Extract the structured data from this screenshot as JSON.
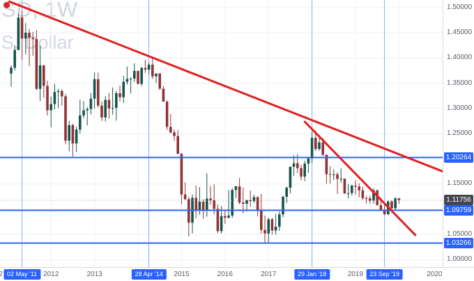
{
  "watermark": {
    "line1": "SD, 1W",
    "line2": "S. Dollar"
  },
  "colors": {
    "background": "#ffffff",
    "grid": "#eef1f6",
    "candle_up": "#17554c",
    "candle_down": "#8f3336",
    "level_line_blue": "#2e66f2",
    "vertical_line_blue": "#86aef5",
    "badge_blue": "#2962ff",
    "badge_last": "#434651",
    "trendline_red": "#e02020",
    "axis_text": "#575c66"
  },
  "price_axis": {
    "tick_labels": [
      "1.50000",
      "1.45000",
      "1.40000",
      "1.35000",
      "1.30000",
      "1.25000",
      "1.15000",
      "1.05000",
      "1.00000"
    ],
    "badges": [
      {
        "text": "1.20264",
        "value": 1.20264,
        "style": "level"
      },
      {
        "text": "1.11756",
        "value": 1.11756,
        "style": "last"
      },
      {
        "text": "1.09759",
        "value": 1.09759,
        "style": "level"
      },
      {
        "text": "1.03266",
        "value": 1.03266,
        "style": "level"
      }
    ]
  },
  "time_axis": {
    "year_labels": [
      {
        "text": "2",
        "index": -2.9
      },
      {
        "text": "2012",
        "index": 11
      },
      {
        "text": "2013",
        "index": 23
      },
      {
        "text": "2015",
        "index": 47
      },
      {
        "text": "2016",
        "index": 59
      },
      {
        "text": "2017",
        "index": 71
      },
      {
        "text": "2019",
        "index": 95
      },
      {
        "text": "2020",
        "index": 116.8
      }
    ],
    "year_gridline_indices": [
      11,
      23,
      35,
      47,
      59,
      71,
      83,
      95,
      107
    ],
    "date_badges": [
      {
        "text": "02 May '11",
        "index": 3
      },
      {
        "text": "28 Apr '14",
        "index": 38
      },
      {
        "text": "29 Jan '18",
        "index": 83
      },
      {
        "text": "23 Sep '19",
        "index": 103
      }
    ]
  },
  "chart_data": {
    "type": "candlestick",
    "x_start": "2011-02",
    "x_unit": "month",
    "ylim": [
      0.985,
      1.515
    ],
    "y_tick_step": 0.05,
    "grid": true,
    "last_price": 1.11756,
    "horizontal_levels": [
      1.20264,
      1.09759,
      1.03266
    ],
    "trendlines": [
      {
        "name": "upper",
        "from_index": -0.5,
        "from_price": 1.512,
        "to_index": 119,
        "to_price": 1.175
      },
      {
        "name": "lower",
        "from_index": 81,
        "from_price": 1.2735,
        "to_index": 111.5,
        "to_price": 1.0486
      }
    ],
    "anchor_dot": {
      "index": -1.2,
      "price": 1.505
    },
    "ohlc": [
      [
        1.369,
        1.3855,
        1.3428,
        1.3806
      ],
      [
        1.3806,
        1.4249,
        1.375,
        1.4158
      ],
      [
        1.4158,
        1.4882,
        1.4155,
        1.4802
      ],
      [
        1.4802,
        1.494,
        1.3968,
        1.4385
      ],
      [
        1.4385,
        1.4696,
        1.4073,
        1.4502
      ],
      [
        1.4502,
        1.4578,
        1.3837,
        1.4398
      ],
      [
        1.4398,
        1.4518,
        1.4046,
        1.4374
      ],
      [
        1.4374,
        1.455,
        1.3363,
        1.3387
      ],
      [
        1.3387,
        1.4247,
        1.3146,
        1.3852
      ],
      [
        1.3852,
        1.386,
        1.3212,
        1.3446
      ],
      [
        1.3446,
        1.3548,
        1.2858,
        1.2961
      ],
      [
        1.2961,
        1.3234,
        1.2624,
        1.3084
      ],
      [
        1.3084,
        1.3487,
        1.2974,
        1.3325
      ],
      [
        1.3325,
        1.3386,
        1.3004,
        1.3343
      ],
      [
        1.3343,
        1.338,
        1.3056,
        1.3239
      ],
      [
        1.3239,
        1.3284,
        1.2288,
        1.2358
      ],
      [
        1.2358,
        1.2748,
        1.2151,
        1.2667
      ],
      [
        1.2667,
        1.2693,
        1.2043,
        1.2304
      ],
      [
        1.2304,
        1.2638,
        1.2133,
        1.2579
      ],
      [
        1.2579,
        1.3172,
        1.2501,
        1.286
      ],
      [
        1.286,
        1.314,
        1.2803,
        1.296
      ],
      [
        1.296,
        1.3028,
        1.2661,
        1.2986
      ],
      [
        1.2986,
        1.3308,
        1.288,
        1.3193
      ],
      [
        1.3193,
        1.3711,
        1.2998,
        1.3579
      ],
      [
        1.3579,
        1.371,
        1.3018,
        1.3054
      ],
      [
        1.3054,
        1.3134,
        1.275,
        1.282
      ],
      [
        1.282,
        1.3243,
        1.274,
        1.3167
      ],
      [
        1.3167,
        1.3306,
        1.2796,
        1.2999
      ],
      [
        1.2999,
        1.3415,
        1.2877,
        1.301
      ],
      [
        1.301,
        1.3345,
        1.2755,
        1.33
      ],
      [
        1.33,
        1.3452,
        1.3138,
        1.3222
      ],
      [
        1.3222,
        1.3645,
        1.3105,
        1.3527
      ],
      [
        1.3527,
        1.3832,
        1.3472,
        1.3583
      ],
      [
        1.3583,
        1.3616,
        1.3295,
        1.3591
      ],
      [
        1.3591,
        1.3893,
        1.3525,
        1.3743
      ],
      [
        1.3743,
        1.3744,
        1.3477,
        1.3486
      ],
      [
        1.3486,
        1.3824,
        1.3445,
        1.3802
      ],
      [
        1.3802,
        1.3967,
        1.3704,
        1.3769
      ],
      [
        1.3769,
        1.3906,
        1.3673,
        1.3866
      ],
      [
        1.3866,
        1.3993,
        1.3586,
        1.3635
      ],
      [
        1.3635,
        1.3677,
        1.3503,
        1.3692
      ],
      [
        1.3692,
        1.3701,
        1.3366,
        1.339
      ],
      [
        1.339,
        1.3445,
        1.3133,
        1.3133
      ],
      [
        1.3133,
        1.316,
        1.2571,
        1.2632
      ],
      [
        1.2632,
        1.2886,
        1.2501,
        1.2524
      ],
      [
        1.2524,
        1.2578,
        1.2357,
        1.2452
      ],
      [
        1.2452,
        1.257,
        1.2098,
        1.2098
      ],
      [
        1.2098,
        1.2109,
        1.1098,
        1.1291
      ],
      [
        1.1291,
        1.1534,
        1.1184,
        1.1197
      ],
      [
        1.1197,
        1.1245,
        1.0462,
        1.0731
      ],
      [
        1.0731,
        1.129,
        1.052,
        1.1224
      ],
      [
        1.1224,
        1.1467,
        1.0819,
        1.0987
      ],
      [
        1.0987,
        1.1436,
        1.0887,
        1.1147
      ],
      [
        1.1147,
        1.1196,
        1.0808,
        1.0984
      ],
      [
        1.0984,
        1.1714,
        1.0848,
        1.1211
      ],
      [
        1.1211,
        1.146,
        1.1087,
        1.1177
      ],
      [
        1.1177,
        1.1495,
        1.0897,
        1.1006
      ],
      [
        1.1006,
        1.1095,
        1.0524,
        1.0563
      ],
      [
        1.0563,
        1.106,
        1.0518,
        1.0862
      ],
      [
        1.0862,
        1.0985,
        1.0711,
        1.0831
      ],
      [
        1.0831,
        1.1376,
        1.081,
        1.0873
      ],
      [
        1.0873,
        1.1412,
        1.0826,
        1.138
      ],
      [
        1.138,
        1.1465,
        1.1217,
        1.1451
      ],
      [
        1.1451,
        1.1616,
        1.1097,
        1.1132
      ],
      [
        1.1132,
        1.1428,
        1.0912,
        1.1106
      ],
      [
        1.1106,
        1.1186,
        1.0952,
        1.1177
      ],
      [
        1.1177,
        1.1366,
        1.1046,
        1.1159
      ],
      [
        1.1159,
        1.1285,
        1.1123,
        1.1238
      ],
      [
        1.1238,
        1.125,
        1.0851,
        1.0981
      ],
      [
        1.0981,
        1.13,
        1.0518,
        1.0587
      ],
      [
        1.0587,
        1.0873,
        1.0341,
        1.0517
      ],
      [
        1.0517,
        1.0829,
        1.0341,
        1.0798
      ],
      [
        1.0798,
        1.0829,
        1.0494,
        1.0576
      ],
      [
        1.0576,
        1.0906,
        1.0495,
        1.0652
      ],
      [
        1.0652,
        1.0951,
        1.057,
        1.0895
      ],
      [
        1.0895,
        1.1268,
        1.0839,
        1.1244
      ],
      [
        1.1244,
        1.1445,
        1.1119,
        1.1426
      ],
      [
        1.1426,
        1.1845,
        1.1312,
        1.1842
      ],
      [
        1.1842,
        1.207,
        1.1662,
        1.191
      ],
      [
        1.191,
        1.2092,
        1.1717,
        1.1814
      ],
      [
        1.1814,
        1.188,
        1.1574,
        1.1646
      ],
      [
        1.1646,
        1.1961,
        1.1554,
        1.1904
      ],
      [
        1.1904,
        1.2028,
        1.1718,
        1.2005
      ],
      [
        1.2005,
        1.2537,
        1.1916,
        1.2415
      ],
      [
        1.2415,
        1.2556,
        1.2155,
        1.2193
      ],
      [
        1.2193,
        1.2476,
        1.2157,
        1.2324
      ],
      [
        1.2324,
        1.2414,
        1.2055,
        1.2079
      ],
      [
        1.2079,
        1.2083,
        1.151,
        1.1693
      ],
      [
        1.1693,
        1.1852,
        1.1508,
        1.1684
      ],
      [
        1.1684,
        1.1791,
        1.1575,
        1.169
      ],
      [
        1.169,
        1.1733,
        1.1301,
        1.1601
      ],
      [
        1.1601,
        1.1815,
        1.1526,
        1.1604
      ],
      [
        1.1604,
        1.161,
        1.1302,
        1.1312
      ],
      [
        1.1312,
        1.15,
        1.1216,
        1.1317
      ],
      [
        1.1317,
        1.1486,
        1.127,
        1.1467
      ],
      [
        1.1467,
        1.157,
        1.1289,
        1.1448
      ],
      [
        1.1448,
        1.1514,
        1.1234,
        1.1373
      ],
      [
        1.1373,
        1.1448,
        1.1176,
        1.1218
      ],
      [
        1.1218,
        1.1265,
        1.1111,
        1.1215
      ],
      [
        1.1215,
        1.1264,
        1.1107,
        1.1168
      ],
      [
        1.1168,
        1.1412,
        1.1107,
        1.1373
      ],
      [
        1.1373,
        1.139,
        1.1075,
        1.1078
      ],
      [
        1.1078,
        1.123,
        1.0963,
        1.099
      ],
      [
        1.099,
        1.1085,
        1.0879,
        1.0899
      ],
      [
        1.0899,
        1.118,
        1.0879,
        1.1152
      ],
      [
        1.1152,
        1.1175,
        1.0981,
        1.1018
      ],
      [
        1.1018,
        1.1239,
        1.0981,
        1.1213
      ],
      [
        1.1213,
        1.1224,
        1.1103,
        1.1176
      ]
    ]
  }
}
